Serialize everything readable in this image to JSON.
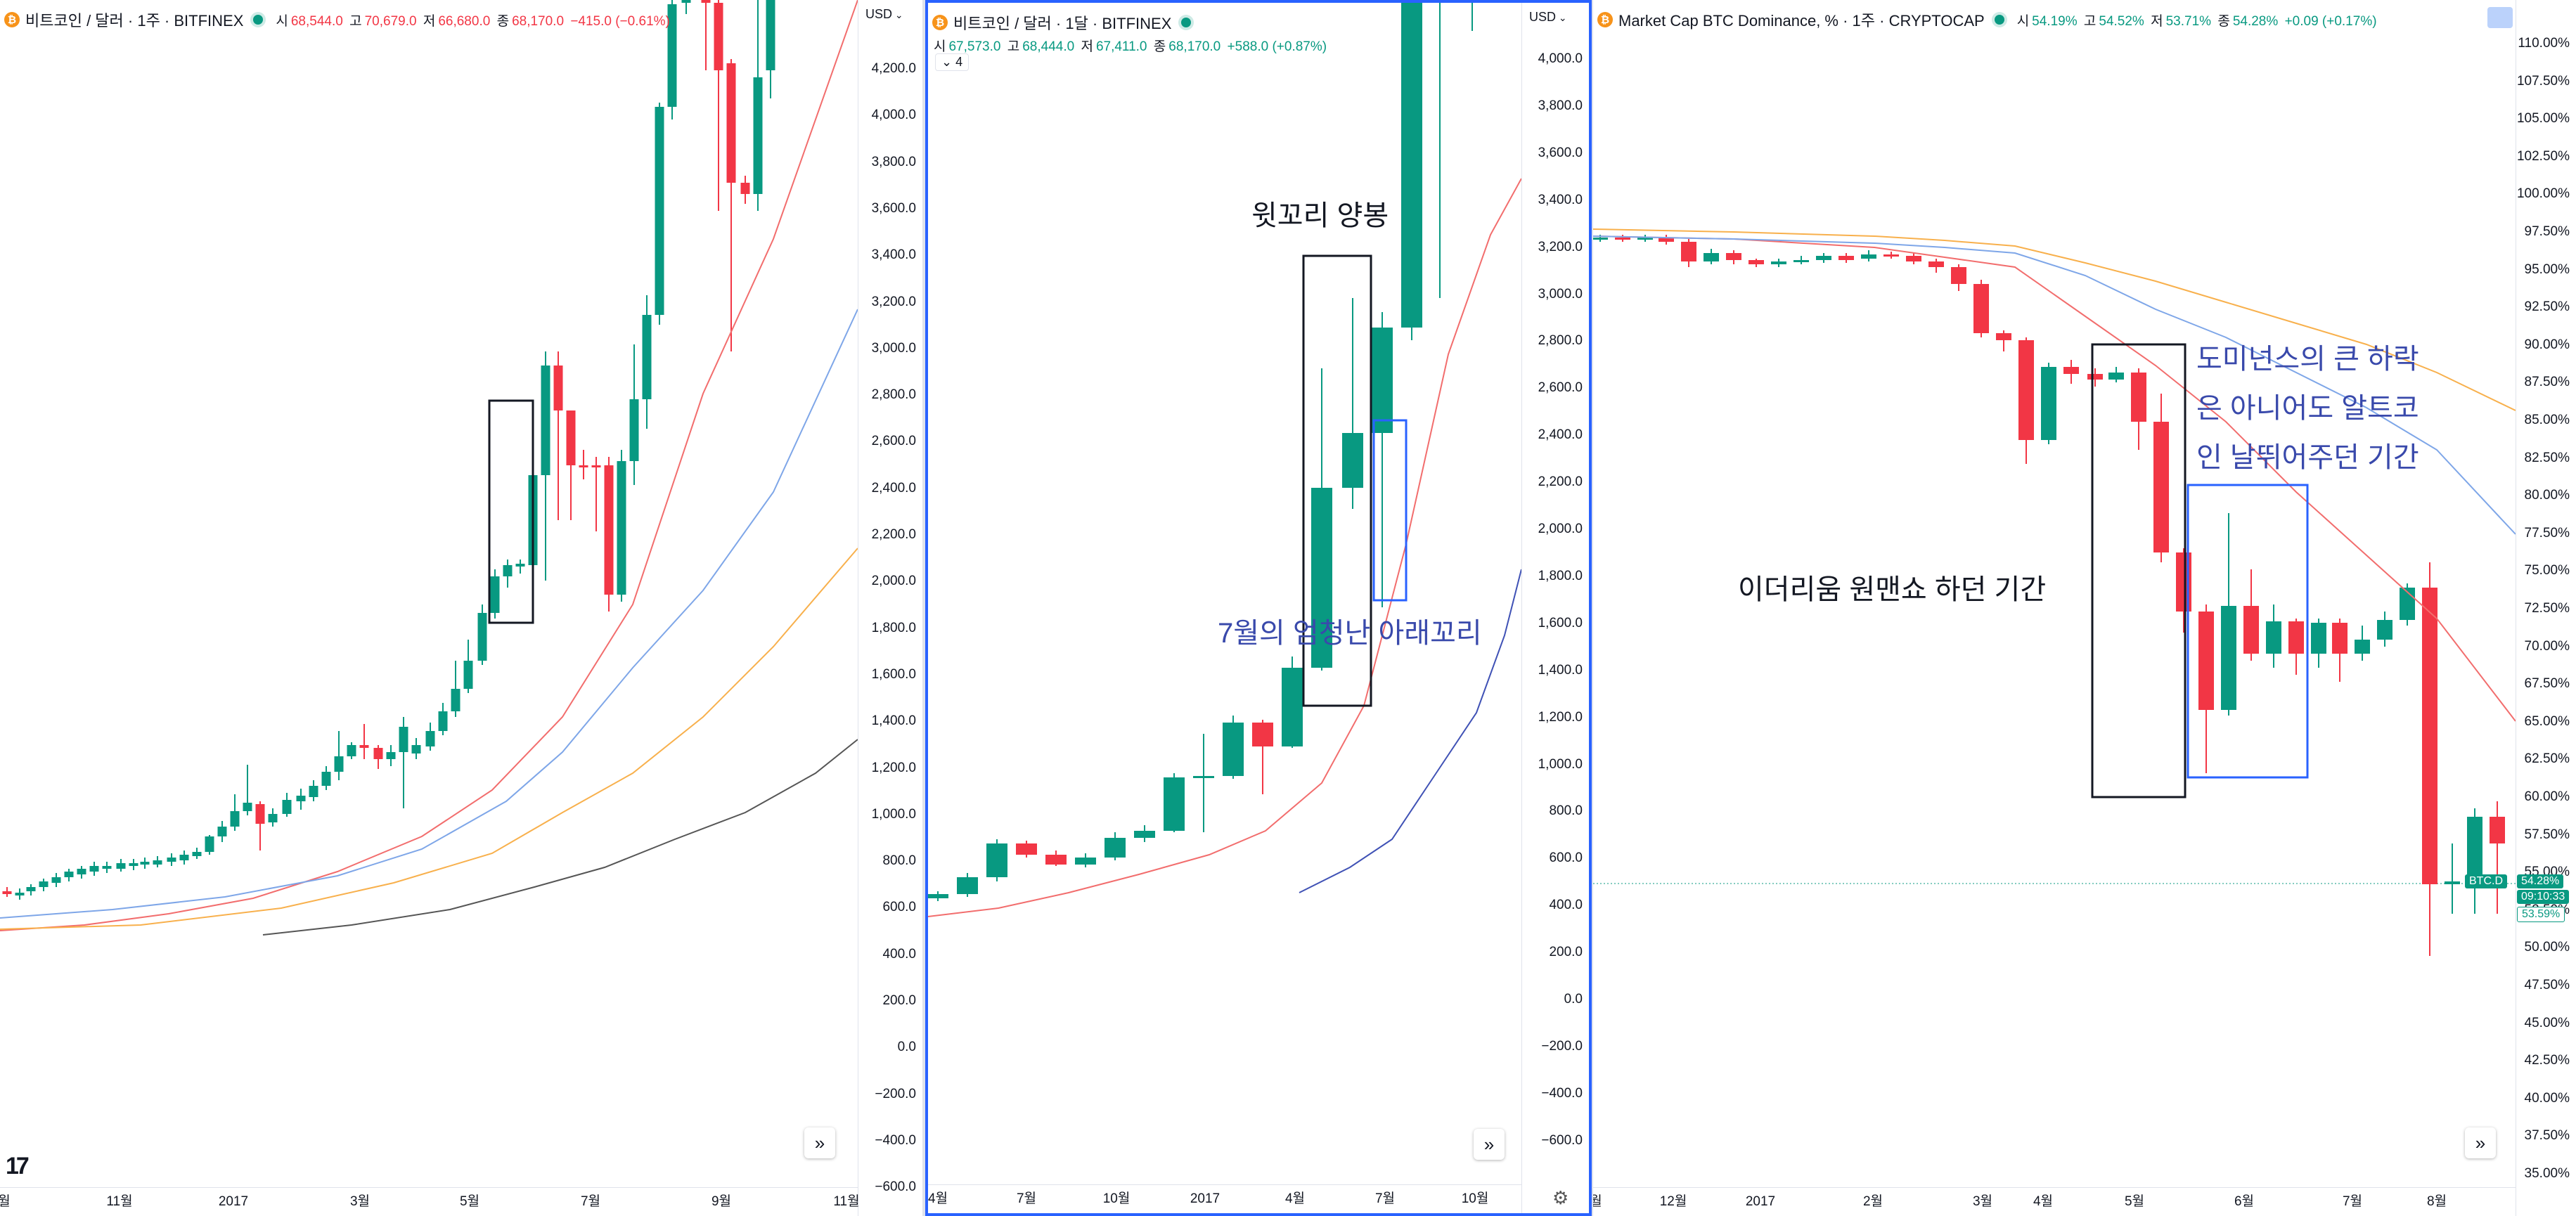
{
  "panes": [
    {
      "symbol": "비트코인 / 달러 · 1주 · BITFINEX",
      "ohlc": {
        "o_label": "시",
        "o": "68,544.0",
        "h_label": "고",
        "h": "70,679.0",
        "l_label": "저",
        "l": "66,680.0",
        "c_label": "종",
        "c": "68,170.0",
        "chg": "−415.0 (−0.61%)"
      },
      "currency": "USD",
      "y_ticks": [
        "4,200.0",
        "4,000.0",
        "3,800.0",
        "3,600.0",
        "3,400.0",
        "3,200.0",
        "3,000.0",
        "2,800.0",
        "2,600.0",
        "2,400.0",
        "2,200.0",
        "2,000.0",
        "1,800.0",
        "1,600.0",
        "1,400.0",
        "1,200.0",
        "1,000.0",
        "800.0",
        "600.0",
        "400.0",
        "200.0",
        "0.0",
        "−200.0",
        "−400.0",
        "−600.0"
      ],
      "x_ticks": [
        "월",
        "11월",
        "2017",
        "3월",
        "5월",
        "7월",
        "9월",
        "11월"
      ],
      "logo": "17"
    },
    {
      "symbol": "비트코인 / 달러 · 1달 · BITFINEX",
      "ohlc": {
        "o_label": "시",
        "o": "67,573.0",
        "h_label": "고",
        "h": "68,444.0",
        "l_label": "저",
        "l": "67,411.0",
        "c_label": "종",
        "c": "68,170.0",
        "chg": "+588.0 (+0.87%)"
      },
      "currency": "USD",
      "indicator_count": "4",
      "y_ticks": [
        "4,000.0",
        "3,800.0",
        "3,600.0",
        "3,400.0",
        "3,200.0",
        "3,000.0",
        "2,800.0",
        "2,600.0",
        "2,400.0",
        "2,200.0",
        "2,000.0",
        "1,800.0",
        "1,600.0",
        "1,400.0",
        "1,200.0",
        "1,000.0",
        "800.0",
        "600.0",
        "400.0",
        "200.0",
        "0.0",
        "−200.0",
        "−400.0",
        "−600.0"
      ],
      "x_ticks": [
        "4월",
        "7월",
        "10월",
        "2017",
        "4월",
        "7월",
        "10월"
      ],
      "annotations": [
        "윗꼬리 양봉",
        "7월의 엄청난 아래꼬리"
      ]
    },
    {
      "symbol": "Market Cap BTC Dominance, % · 1주 · CRYPTOCAP",
      "ohlc": {
        "o_label": "시",
        "o": "54.19%",
        "h_label": "고",
        "h": "54.52%",
        "l_label": "저",
        "l": "53.71%",
        "c_label": "종",
        "c": "54.28%",
        "chg": "+0.09 (+0.17%)"
      },
      "y_ticks": [
        "110.00%",
        "107.50%",
        "105.00%",
        "102.50%",
        "100.00%",
        "97.50%",
        "95.00%",
        "92.50%",
        "90.00%",
        "87.50%",
        "85.00%",
        "82.50%",
        "80.00%",
        "77.50%",
        "75.00%",
        "72.50%",
        "70.00%",
        "67.50%",
        "65.00%",
        "62.50%",
        "60.00%",
        "57.50%",
        "55.00%",
        "52.50%",
        "50.00%",
        "47.50%",
        "45.00%",
        "42.50%",
        "40.00%",
        "37.50%",
        "35.00%"
      ],
      "x_ticks": [
        "월",
        "12월",
        "2017",
        "2월",
        "3월",
        "4월",
        "5월",
        "6월",
        "7월",
        "8월"
      ],
      "price_badge": {
        "symbol": "BTC.D",
        "value": "54.28%",
        "timer": "09:10:33",
        "alt": "53.59%"
      },
      "annotations": [
        "도미넌스의 큰 하락",
        "은 아니어도 알트코",
        "인 날뛰어주던 기간",
        "이더리움 원맨쇼 하던 기간"
      ]
    }
  ],
  "colors": {
    "up": "#089981",
    "down": "#f23645",
    "accent": "#2962ff",
    "ma_red": "#f26d6d",
    "ma_blue": "#7ea6e8",
    "ma_orange": "#f8b04c",
    "ma_black": "#555555",
    "ma_navy": "#3f51b5"
  },
  "icons": {
    "coin": "bitcoin-icon",
    "scroll": "double-chevron-right-icon",
    "settings": "gear-icon"
  }
}
